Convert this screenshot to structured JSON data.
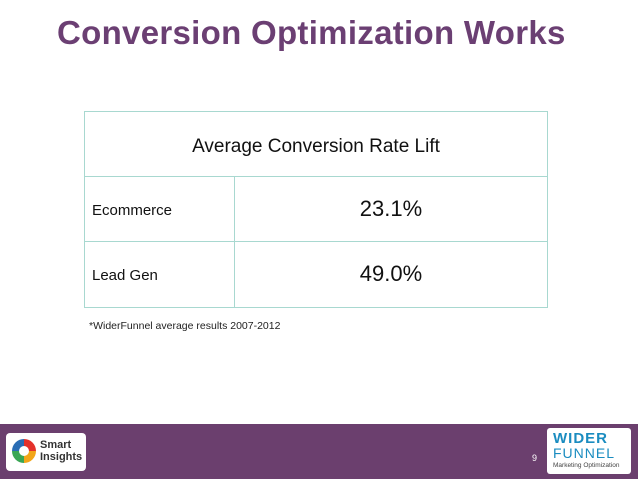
{
  "title": "Conversion Optimization Works",
  "table": {
    "header": "Average Conversion Rate Lift",
    "rows": [
      {
        "label": "Ecommerce",
        "value": "23.1%"
      },
      {
        "label": "Lead Gen",
        "value": "49.0%"
      }
    ]
  },
  "footnote": "*WiderFunnel average results 2007-2012",
  "footer": {
    "page_number": "9",
    "logo_left_text": "Smart Insights",
    "logo_right": {
      "line1": "WIDER",
      "line2": "FUNNEL",
      "line3": "Marketing Optimization"
    }
  },
  "colors": {
    "title": "#6b3f73",
    "footer_bg": "#6b3f6e",
    "table_border": "#a8d8d0"
  }
}
